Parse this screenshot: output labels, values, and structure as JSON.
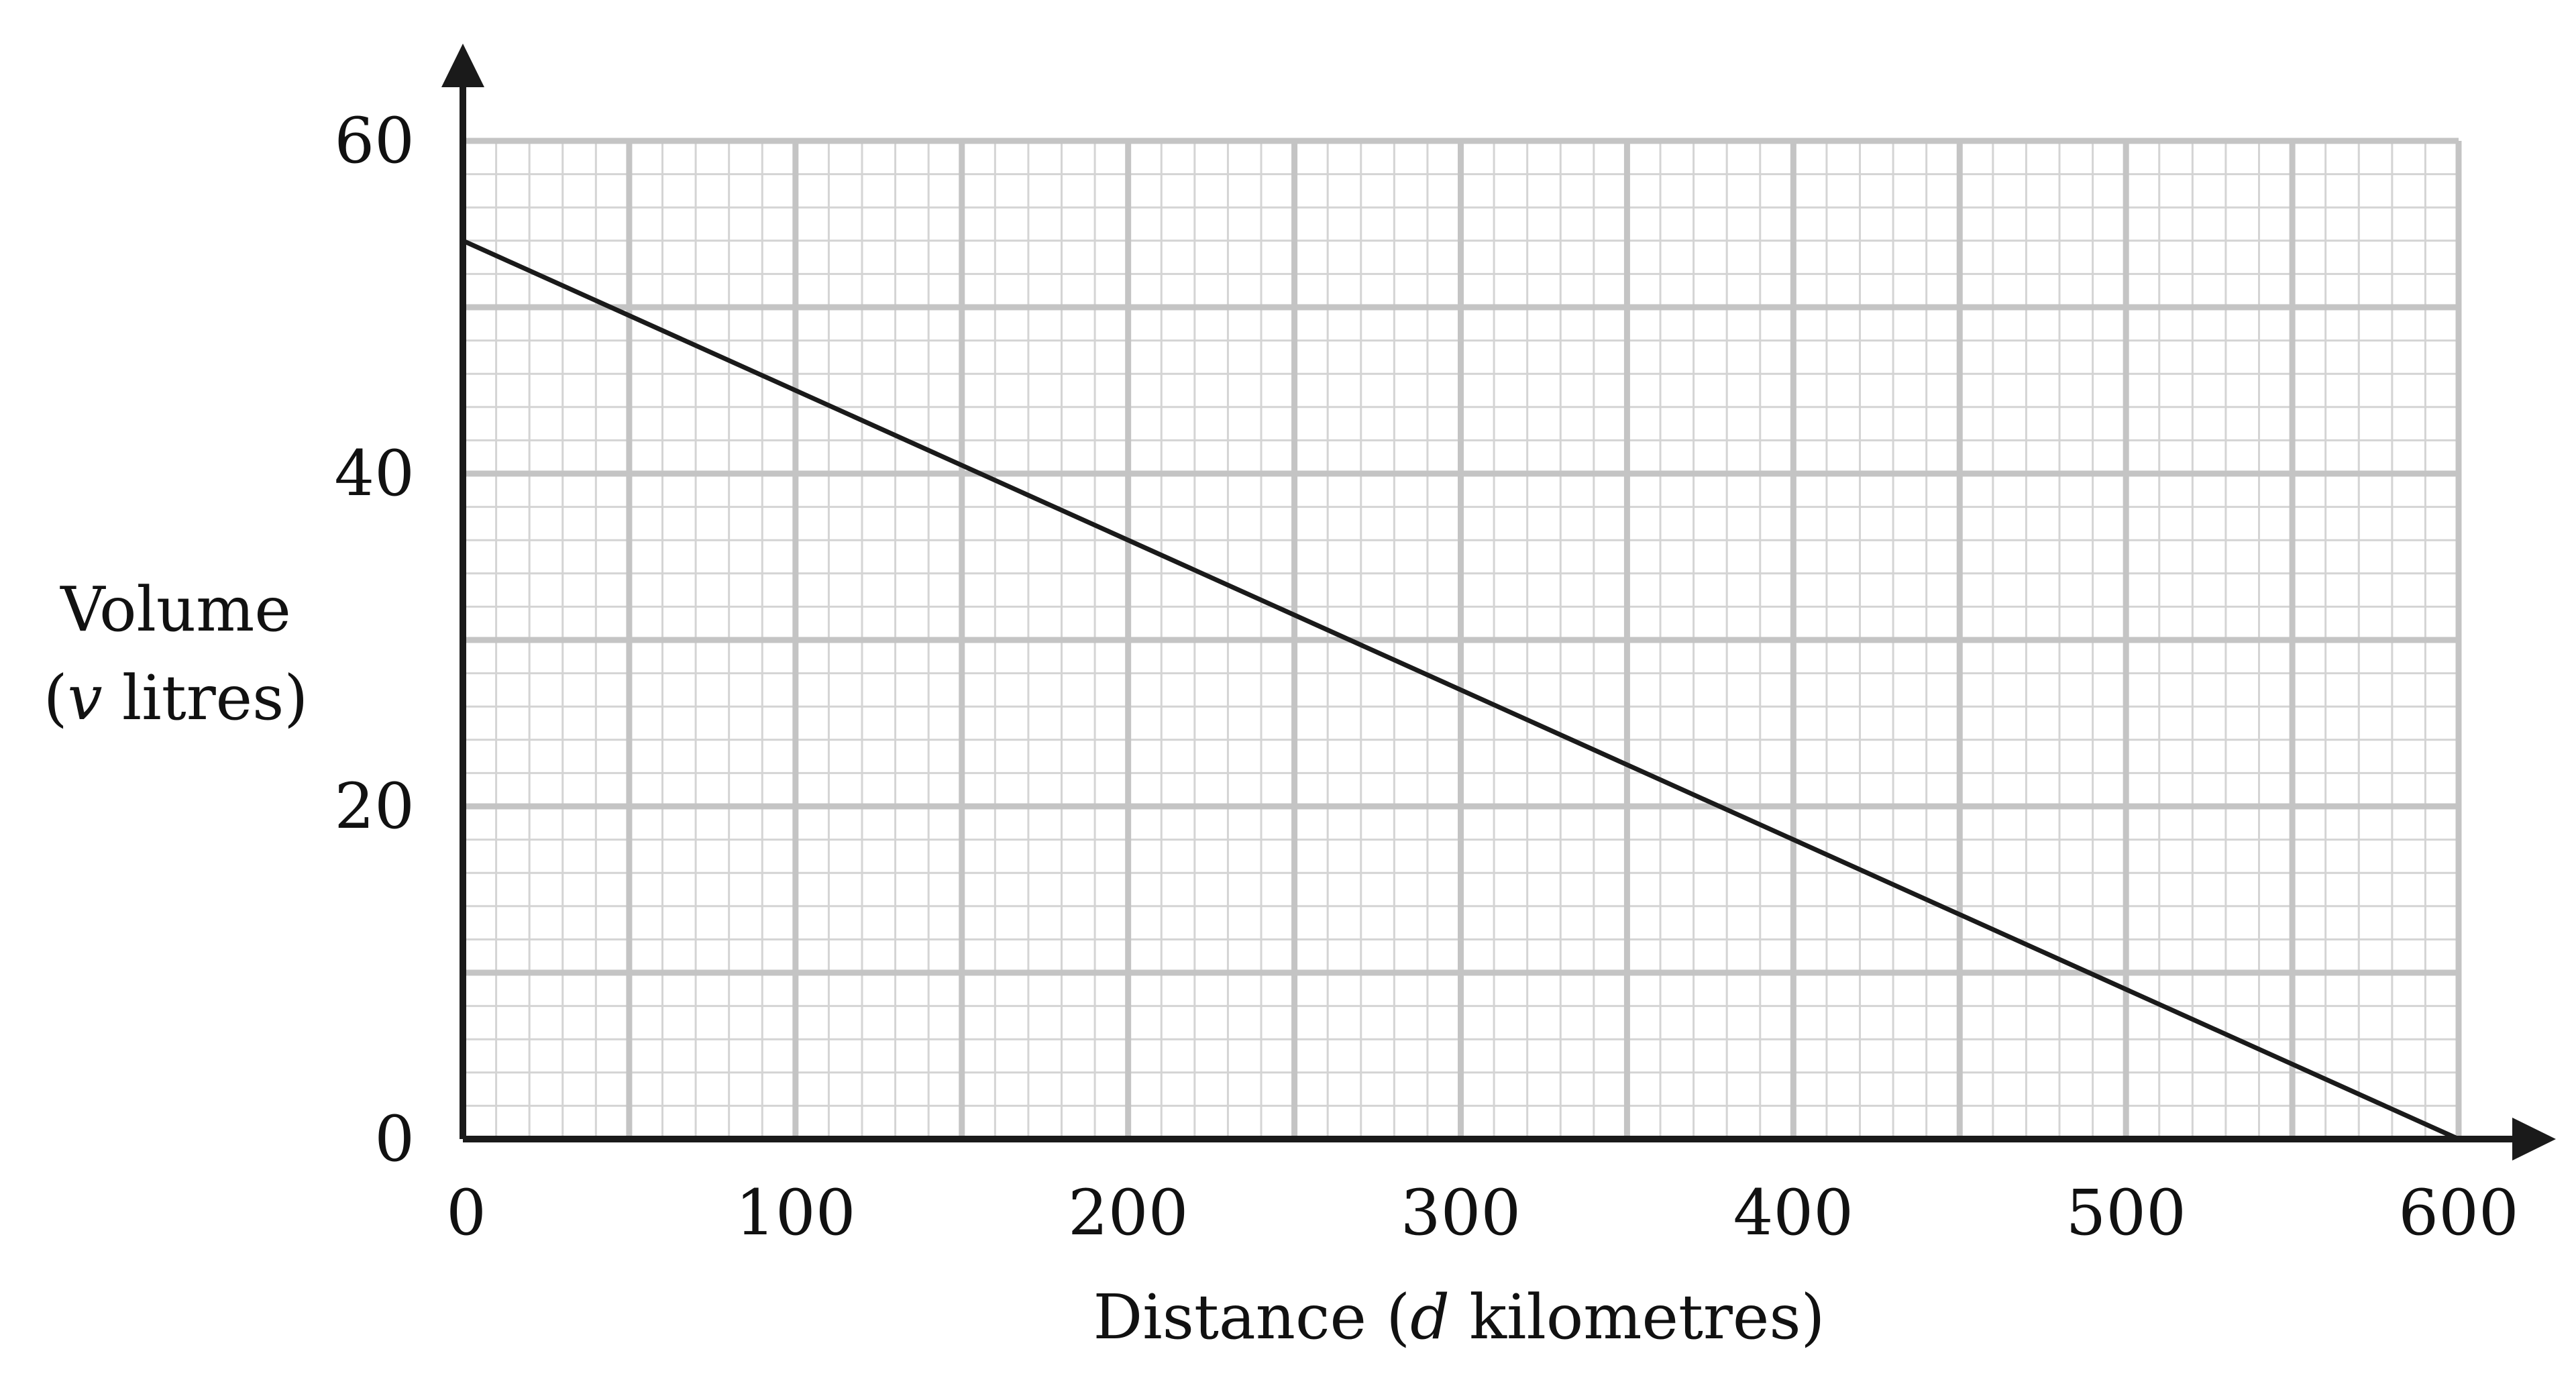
{
  "chart_data": {
    "type": "line",
    "title": "",
    "xlabel_parts": [
      "Distance (",
      "d",
      " kilometres)"
    ],
    "ylabel_line1": "Volume",
    "ylabel_line2_parts": [
      "(",
      "v",
      " litres)"
    ],
    "xlim": [
      0,
      600
    ],
    "ylim": [
      0,
      60
    ],
    "x_ticks": [
      0,
      100,
      200,
      300,
      400,
      500,
      600
    ],
    "y_ticks": [
      0,
      20,
      40,
      60
    ],
    "x_tick_labels": [
      "0",
      "100",
      "200",
      "300",
      "400",
      "500",
      "600"
    ],
    "y_tick_labels": [
      "0",
      "20",
      "40",
      "60"
    ],
    "grid": {
      "major_x": 50,
      "major_y": 10,
      "minor_x": 10,
      "minor_y": 2
    },
    "series": [
      {
        "x": [
          0,
          600
        ],
        "y": [
          54,
          0
        ]
      }
    ],
    "colors": {
      "line": "#1a1a1a",
      "axis": "#1a1a1a",
      "grid_major": "#c4c4c4",
      "grid_minor": "#d4d4d4"
    }
  }
}
